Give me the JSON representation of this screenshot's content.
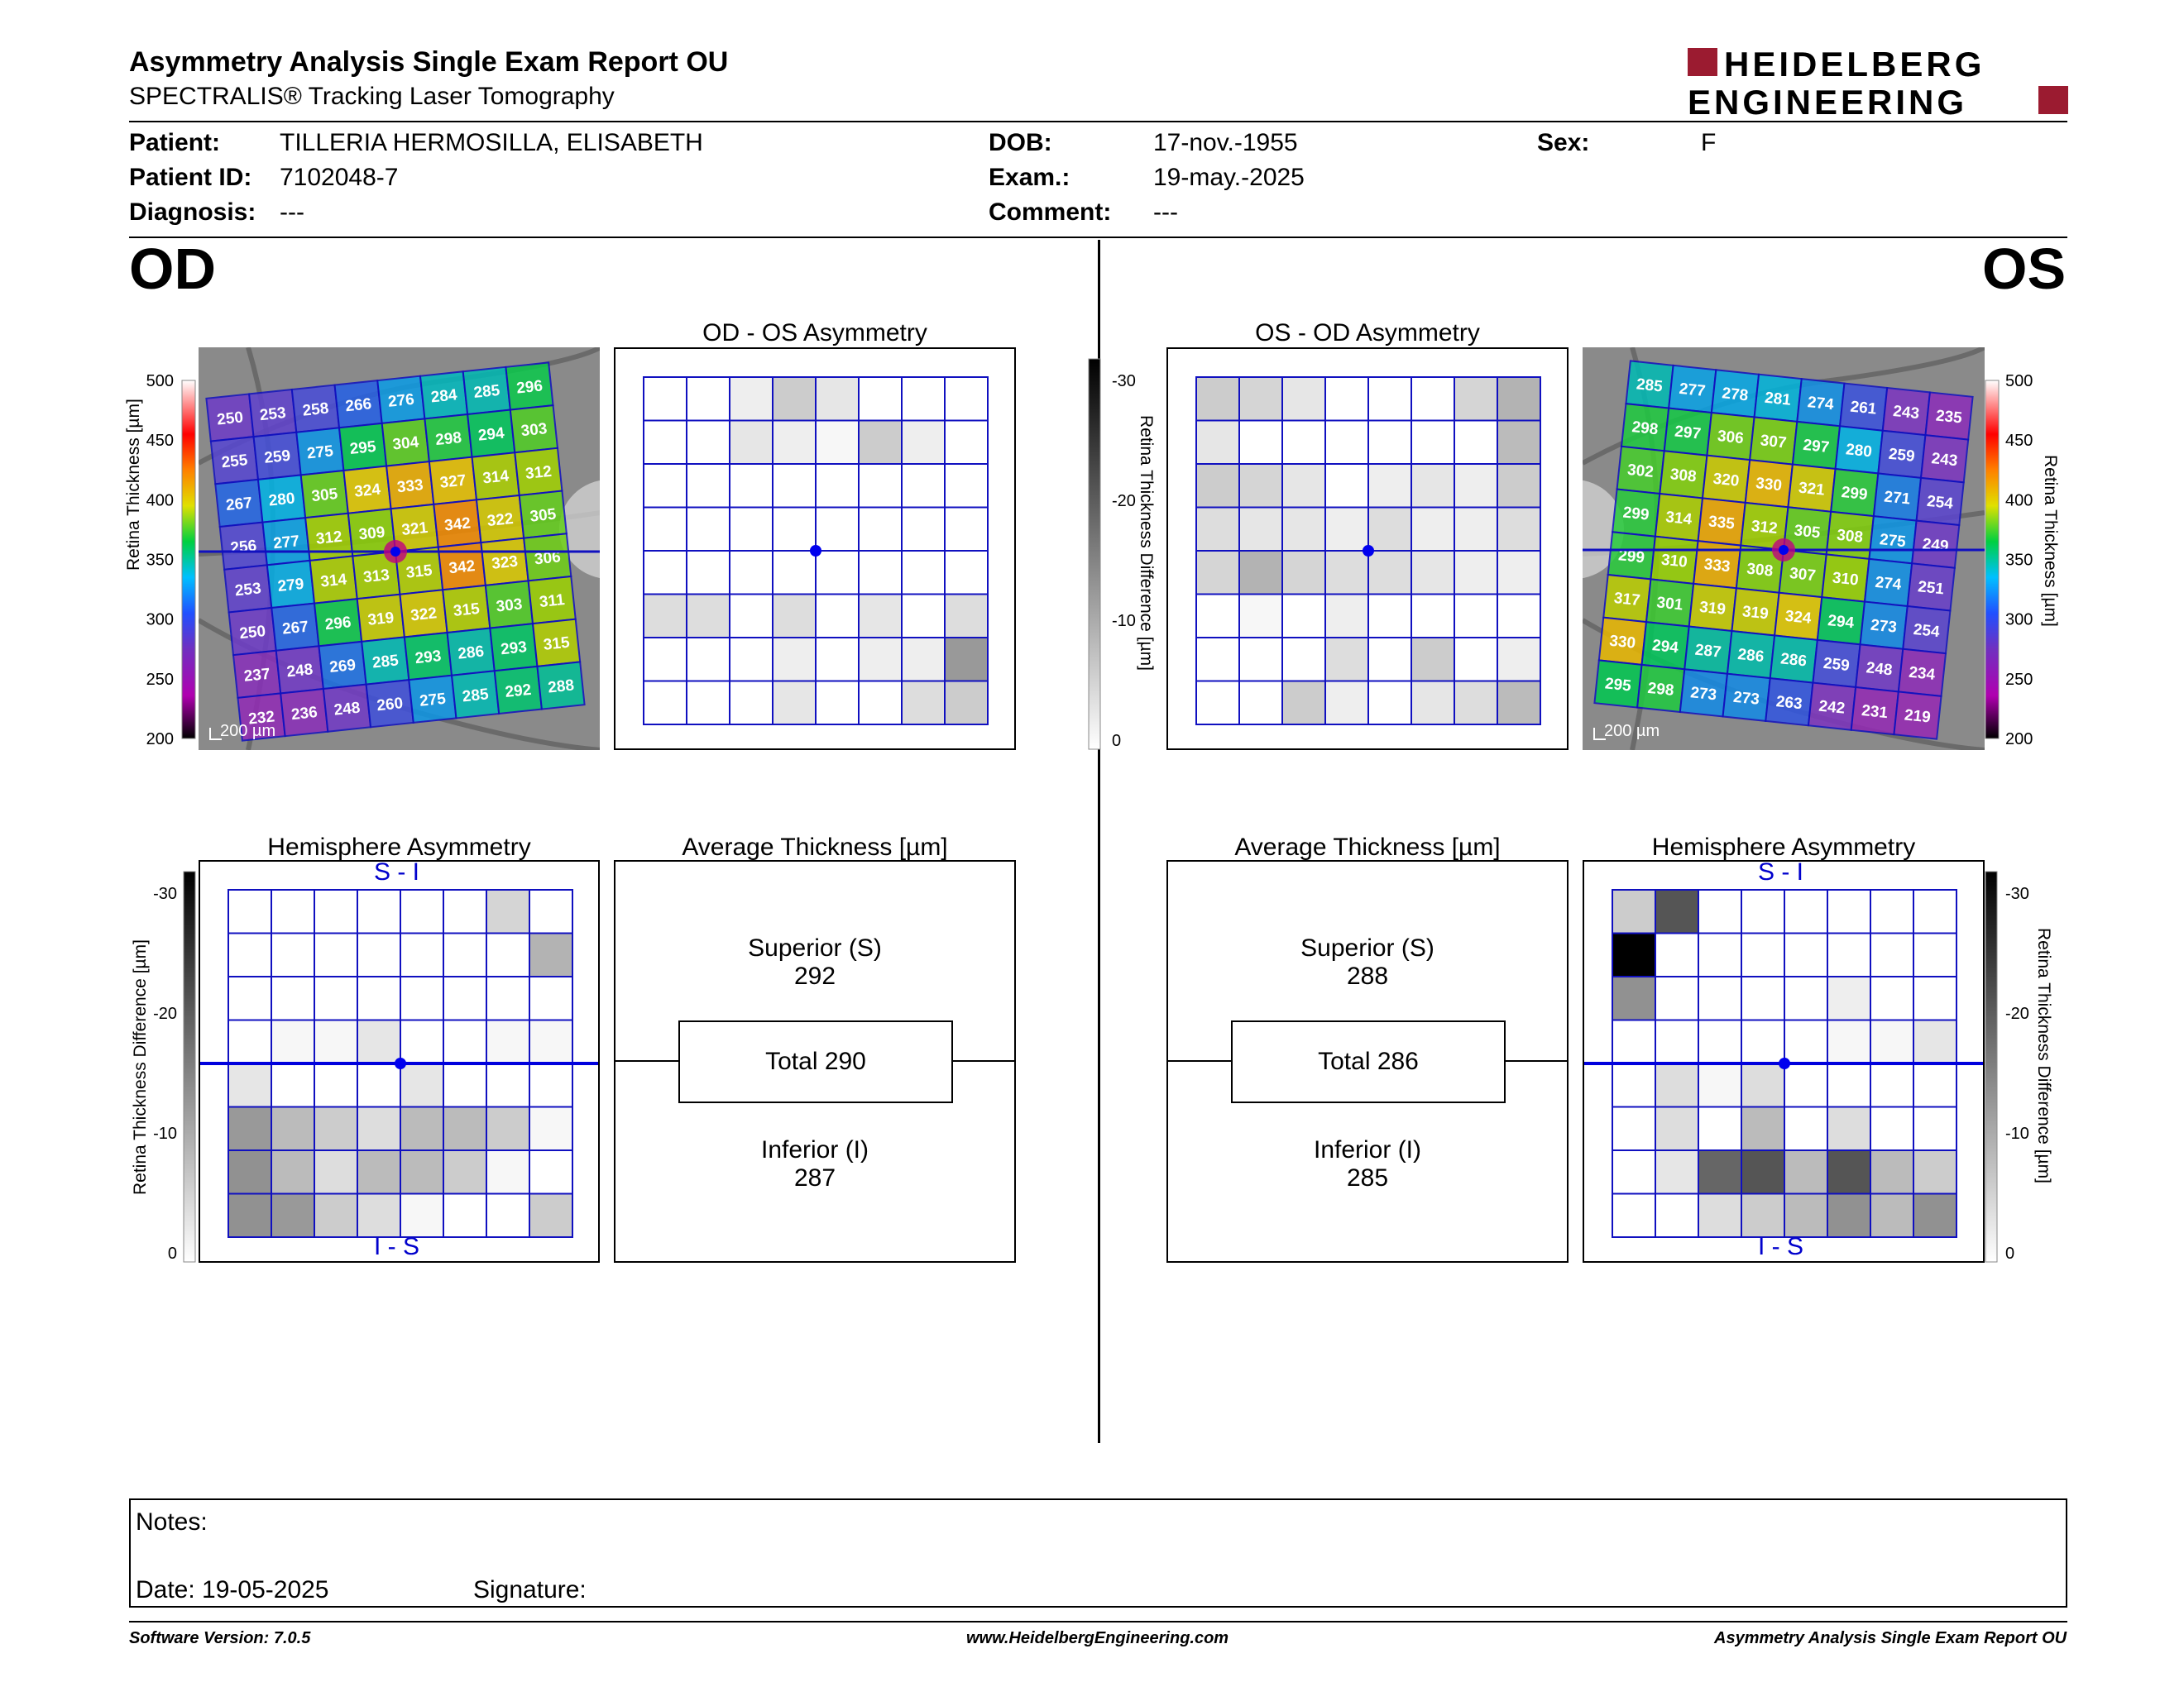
{
  "header": {
    "title": "Asymmetry Analysis Single Exam Report OU",
    "subtitle": "SPECTRALIS® Tracking Laser Tomography",
    "logo_line1": "HEIDELBERG",
    "logo_line2": "ENGINEERING",
    "logo_color": "#9b1b30"
  },
  "patient": {
    "patient_label": "Patient:",
    "patient_value": "TILLERIA HERMOSILLA, ELISABETH",
    "id_label": "Patient ID:",
    "id_value": "7102048-7",
    "diagnosis_label": "Diagnosis:",
    "diagnosis_value": "---",
    "dob_label": "DOB:",
    "dob_value": "17-nov.-1955",
    "exam_label": "Exam.:",
    "exam_value": "19-may.-2025",
    "comment_label": "Comment:",
    "comment_value": "---",
    "sex_label": "Sex:",
    "sex_value": "F"
  },
  "od": {
    "eye_label": "OD",
    "asym_title": "OD - OS Asymmetry",
    "hemi_title": "Hemisphere Asymmetry",
    "hemi_top": "S - I",
    "hemi_bottom": "I - S",
    "avg_title": "Average Thickness [µm]",
    "superior_label": "Superior (S)",
    "superior_value": "292",
    "total_label": "Total 290",
    "inferior_label": "Inferior (I)",
    "inferior_value": "287",
    "scale_label": "200 µm",
    "thickness_grid": [
      [
        250,
        253,
        258,
        266,
        276,
        284,
        285,
        296
      ],
      [
        255,
        259,
        275,
        295,
        304,
        298,
        294,
        303
      ],
      [
        267,
        280,
        305,
        324,
        333,
        327,
        314,
        312
      ],
      [
        256,
        277,
        312,
        309,
        321,
        342,
        322,
        305
      ],
      [
        253,
        279,
        314,
        313,
        315,
        342,
        323,
        306
      ],
      [
        250,
        267,
        296,
        319,
        322,
        315,
        303,
        311
      ],
      [
        237,
        248,
        269,
        285,
        293,
        286,
        293,
        315
      ],
      [
        232,
        236,
        248,
        260,
        275,
        285,
        292,
        288
      ]
    ],
    "asym_grid": [
      [
        0,
        0,
        2,
        6,
        3,
        0,
        0,
        0
      ],
      [
        0,
        0,
        3,
        2,
        1,
        6,
        2,
        0
      ],
      [
        0,
        0,
        0,
        0,
        0,
        0,
        0,
        0
      ],
      [
        0,
        0,
        0,
        0,
        0,
        0,
        0,
        0
      ],
      [
        0,
        0,
        0,
        0,
        0,
        0,
        0,
        0
      ],
      [
        4,
        4,
        0,
        4,
        0,
        3,
        0,
        4
      ],
      [
        0,
        0,
        0,
        2,
        0,
        2,
        2,
        12
      ],
      [
        0,
        0,
        0,
        3,
        0,
        0,
        4,
        6
      ]
    ],
    "hemi_grid": [
      [
        0,
        0,
        0,
        0,
        0,
        0,
        5,
        0
      ],
      [
        0,
        0,
        0,
        0,
        0,
        0,
        0,
        9
      ],
      [
        0,
        0,
        0,
        0,
        0,
        0,
        0,
        0
      ],
      [
        0,
        1,
        1,
        3,
        0,
        0,
        1,
        1
      ],
      [
        3,
        0,
        0,
        0,
        3,
        0,
        0,
        0
      ],
      [
        12,
        8,
        6,
        4,
        8,
        8,
        6,
        1
      ],
      [
        13,
        8,
        4,
        8,
        8,
        6,
        1,
        0
      ],
      [
        13,
        12,
        6,
        4,
        1,
        0,
        0,
        6
      ]
    ]
  },
  "os": {
    "eye_label": "OS",
    "asym_title": "OS - OD Asymmetry",
    "hemi_title": "Hemisphere Asymmetry",
    "hemi_top": "S - I",
    "hemi_bottom": "I - S",
    "avg_title": "Average Thickness [µm]",
    "superior_label": "Superior (S)",
    "superior_value": "288",
    "total_label": "Total 286",
    "inferior_label": "Inferior (I)",
    "inferior_value": "285",
    "scale_label": "200 µm",
    "thickness_grid": [
      [
        285,
        277,
        278,
        281,
        274,
        261,
        243,
        235
      ],
      [
        298,
        297,
        306,
        307,
        297,
        280,
        259,
        243
      ],
      [
        302,
        308,
        320,
        330,
        321,
        299,
        271,
        254
      ],
      [
        299,
        314,
        335,
        312,
        305,
        308,
        275,
        249
      ],
      [
        299,
        310,
        333,
        308,
        307,
        310,
        274,
        251
      ],
      [
        317,
        301,
        319,
        319,
        324,
        294,
        273,
        254
      ],
      [
        330,
        294,
        287,
        286,
        286,
        259,
        248,
        234
      ],
      [
        295,
        298,
        273,
        273,
        263,
        242,
        231,
        219
      ]
    ],
    "asym_grid": [
      [
        6,
        5,
        3,
        0,
        0,
        0,
        5,
        9
      ],
      [
        3,
        0,
        0,
        0,
        0,
        0,
        0,
        8
      ],
      [
        6,
        5,
        3,
        0,
        2,
        3,
        2,
        6
      ],
      [
        4,
        3,
        3,
        2,
        4,
        2,
        2,
        4
      ],
      [
        5,
        9,
        5,
        4,
        4,
        3,
        2,
        2
      ],
      [
        0,
        1,
        0,
        2,
        0,
        0,
        0,
        0
      ],
      [
        0,
        0,
        0,
        4,
        0,
        6,
        0,
        2
      ],
      [
        0,
        0,
        6,
        2,
        0,
        3,
        4,
        8
      ]
    ],
    "hemi_grid": [
      [
        6,
        20,
        0,
        0,
        0,
        0,
        0,
        0
      ],
      [
        30,
        0,
        0,
        0,
        0,
        0,
        0,
        0
      ],
      [
        13,
        0,
        0,
        0,
        0,
        2,
        0,
        0
      ],
      [
        0,
        0,
        0,
        0,
        0,
        1,
        1,
        3
      ],
      [
        0,
        4,
        1,
        4,
        0,
        0,
        0,
        0
      ],
      [
        0,
        4,
        0,
        8,
        0,
        4,
        0,
        0
      ],
      [
        0,
        3,
        18,
        20,
        8,
        20,
        8,
        6
      ],
      [
        0,
        0,
        4,
        6,
        8,
        13,
        8,
        13
      ]
    ]
  },
  "colorbar": {
    "thickness_label": "Retina Thickness [µm]",
    "thickness_ticks": [
      "500",
      "450",
      "400",
      "350",
      "300",
      "250",
      "200"
    ],
    "diff_label": "Retina Thickness Difference [µm]",
    "diff_ticks": [
      "-30",
      "-20",
      "-10",
      "0"
    ]
  },
  "notes": {
    "notes_label": "Notes:",
    "date_label": "Date: 19-05-2025",
    "signature_label": "Signature:"
  },
  "footer": {
    "software": "Software Version: 7.0.5",
    "website": "www.HeidelbergEngineering.com",
    "report": "Asymmetry Analysis Single Exam Report OU"
  }
}
